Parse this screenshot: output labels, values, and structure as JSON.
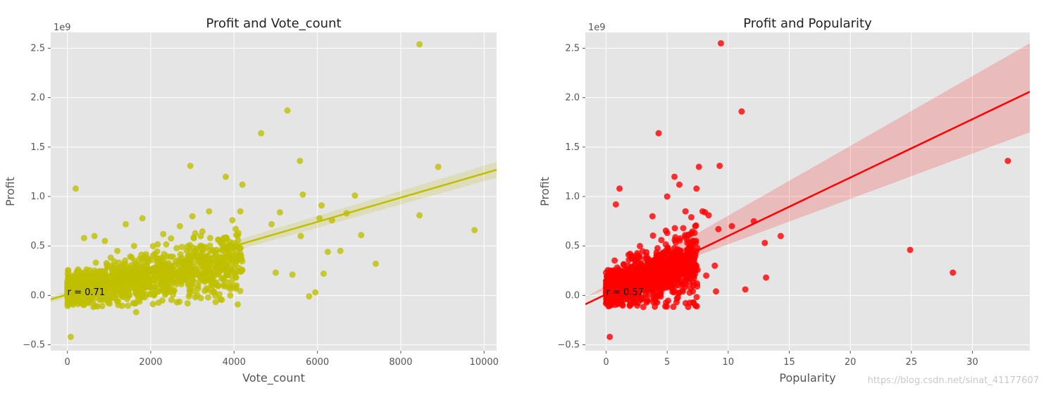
{
  "chart_data": [
    {
      "type": "scatter",
      "title": "Profit and Vote_count",
      "xlabel": "Vote_count",
      "ylabel": "Profit",
      "y_offset_label": "1e9",
      "xlim": [
        -400,
        10300
      ],
      "ylim": [
        -0.56,
        2.66
      ],
      "xticks": [
        0,
        2000,
        4000,
        6000,
        8000,
        10000
      ],
      "yticks": [
        -0.5,
        0.0,
        0.5,
        1.0,
        1.5,
        2.0,
        2.5
      ],
      "xtick_labels": [
        "0",
        "2000",
        "4000",
        "6000",
        "8000",
        "10000"
      ],
      "ytick_labels": [
        "−0.5",
        "0.0",
        "0.5",
        "1.0",
        "1.5",
        "2.0",
        "2.5"
      ],
      "color": "#bfbf00",
      "annotation": "r = 0.71",
      "annotation_at": [
        0,
        0.03
      ],
      "regression": {
        "x": [
          -400,
          10300
        ],
        "y": [
          -0.04,
          1.27
        ],
        "ci": [
          0.03,
          0.08
        ]
      },
      "points": {
        "x": [
          8450,
          5280,
          4650,
          8900,
          5580,
          2950,
          200,
          3800,
          4200,
          3400,
          4150,
          5650,
          6100,
          6900,
          6700,
          4900,
          5100,
          6050,
          6350,
          8450,
          9770,
          7050,
          6250,
          6550,
          5600,
          7400,
          6150,
          5800,
          5950,
          5400,
          5000,
          4100,
          3900,
          3200,
          3000,
          2700,
          2300,
          1800,
          1400,
          900,
          1600,
          1200,
          650,
          400,
          100,
          80,
          1650
        ],
        "y": [
          2.54,
          1.87,
          1.64,
          1.3,
          1.36,
          1.31,
          1.08,
          1.2,
          1.12,
          0.85,
          0.85,
          1.02,
          0.91,
          1.01,
          0.83,
          0.72,
          0.84,
          0.78,
          0.76,
          0.81,
          0.66,
          0.61,
          0.44,
          0.45,
          0.6,
          0.32,
          0.22,
          -0.01,
          0.03,
          0.21,
          0.23,
          0.4,
          0.54,
          0.6,
          0.8,
          0.7,
          0.62,
          0.78,
          0.72,
          0.55,
          0.5,
          0.45,
          0.6,
          0.58,
          0.2,
          -0.42,
          -0.17
        ]
      },
      "cluster": {
        "x_range": [
          0,
          4200
        ],
        "y_center": [
          0.05,
          0.35
        ],
        "count": 1200
      }
    },
    {
      "type": "scatter",
      "title": "Profit and Popularity",
      "xlabel": "Popularity",
      "ylabel": "Profit",
      "y_offset_label": "1e9",
      "xlim": [
        -1.7,
        34.7
      ],
      "ylim": [
        -0.56,
        2.66
      ],
      "xticks": [
        0,
        5,
        10,
        15,
        20,
        25,
        30
      ],
      "yticks": [
        -0.5,
        0.0,
        0.5,
        1.0,
        1.5,
        2.0,
        2.5
      ],
      "xtick_labels": [
        "0",
        "5",
        "10",
        "15",
        "20",
        "25",
        "30"
      ],
      "ytick_labels": [
        "−0.5",
        "0.0",
        "0.5",
        "1.0",
        "1.5",
        "2.0",
        "2.5"
      ],
      "color": "#ff0000",
      "annotation": "r = 0.57",
      "annotation_at": [
        0,
        0.03
      ],
      "regression": {
        "x": [
          -1.7,
          34.7
        ],
        "y": [
          -0.09,
          2.06
        ],
        "ci_low": [
          -0.07,
          1.65
        ],
        "ci_high": [
          -0.04,
          2.55
        ]
      },
      "points": {
        "x": [
          9.4,
          11.1,
          4.3,
          9.3,
          7.6,
          32.9,
          24.9,
          28.4,
          14.3,
          13.1,
          12.1,
          13.0,
          11.4,
          9.2,
          10.3,
          8.1,
          7.9,
          8.4,
          8.9,
          9.0,
          7.4,
          6.0,
          5.6,
          0.8,
          1.1,
          0.3,
          5.0,
          6.5,
          7.3,
          8.2,
          3.8
        ],
        "y": [
          2.55,
          1.86,
          1.64,
          1.31,
          1.3,
          1.36,
          0.46,
          0.23,
          0.6,
          0.18,
          0.75,
          0.53,
          0.06,
          0.67,
          0.7,
          0.84,
          0.85,
          0.81,
          0.3,
          0.04,
          1.08,
          1.12,
          1.2,
          0.92,
          1.08,
          -0.42,
          1.0,
          0.85,
          0.7,
          0.2,
          0.8
        ]
      },
      "cluster": {
        "x_range": [
          0,
          7.5
        ],
        "y_center": [
          0.05,
          0.35
        ],
        "count": 1200
      }
    }
  ],
  "watermark": "https://blog.csdn.net/sinat_41177607"
}
